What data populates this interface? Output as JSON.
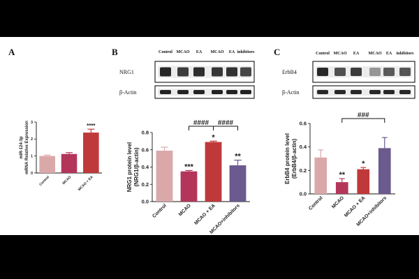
{
  "panels": {
    "A": "A",
    "B": "B",
    "C": "C"
  },
  "chart_data": [
    {
      "type": "bar",
      "panel": "A",
      "ylabel_lines": [
        "miR-124-3p",
        "mRNA Relative Expression"
      ],
      "categories": [
        "Control",
        "MCAO",
        "MCAO + EA"
      ],
      "values": [
        1.0,
        1.12,
        2.38
      ],
      "errors": [
        0.05,
        0.08,
        0.2
      ],
      "significance": [
        "",
        "",
        "****"
      ],
      "ylim": [
        0,
        3
      ],
      "yticks": [
        "0",
        "1",
        "2",
        "3"
      ],
      "colors": [
        "#dba8aa",
        "#b3365a",
        "#c0393a"
      ]
    },
    {
      "type": "bar",
      "panel": "B",
      "ylabel_lines": [
        "NRG1 protein level",
        "(NRG1/β-actin)"
      ],
      "categories": [
        "Control",
        "MCAO",
        "MCAO + EA",
        "MCAO+inhibitors"
      ],
      "values": [
        0.59,
        0.35,
        0.69,
        0.42
      ],
      "errors": [
        0.04,
        0.01,
        0.01,
        0.06
      ],
      "significance": [
        "",
        "***",
        "*",
        "**"
      ],
      "brackets": [
        {
          "from": 1,
          "to": 2,
          "label": "####"
        },
        {
          "from": 2,
          "to": 3,
          "label": "####"
        }
      ],
      "ylim": [
        0,
        0.8
      ],
      "yticks": [
        "0.0",
        "0.2",
        "0.4",
        "0.6",
        "0.8"
      ],
      "colors": [
        "#dba8aa",
        "#b3365a",
        "#c0393a",
        "#6a5a8e"
      ]
    },
    {
      "type": "bar",
      "panel": "C",
      "ylabel_lines": [
        "ErbB4 protein level",
        "(ErbB4/β-actin)"
      ],
      "categories": [
        "Control",
        "MCAO",
        "MCAO + EA",
        "MCAO+inhibitors"
      ],
      "values": [
        0.31,
        0.1,
        0.21,
        0.39
      ],
      "errors": [
        0.065,
        0.03,
        0.015,
        0.09
      ],
      "significance": [
        "",
        "**",
        "*",
        ""
      ],
      "brackets": [
        {
          "from": 1,
          "to": 3,
          "label": "###"
        }
      ],
      "ylim": [
        0,
        0.6
      ],
      "yticks": [
        "0.0",
        "0.2",
        "0.4",
        "0.6"
      ],
      "colors": [
        "#dba8aa",
        "#b3365a",
        "#c0393a",
        "#6a5a8e"
      ]
    }
  ],
  "blots": {
    "B": {
      "lanes": [
        "Control",
        "MCAO",
        "EA",
        "MCAO",
        "EA",
        "inhibitors"
      ],
      "rows": [
        "NRG1",
        "β-Actin"
      ]
    },
    "C": {
      "lanes": [
        "Control",
        "MCAO",
        "EA",
        "MCAO",
        "EA",
        "inhibitors"
      ],
      "rows": [
        "ErbB4",
        "β-Actin"
      ]
    }
  }
}
